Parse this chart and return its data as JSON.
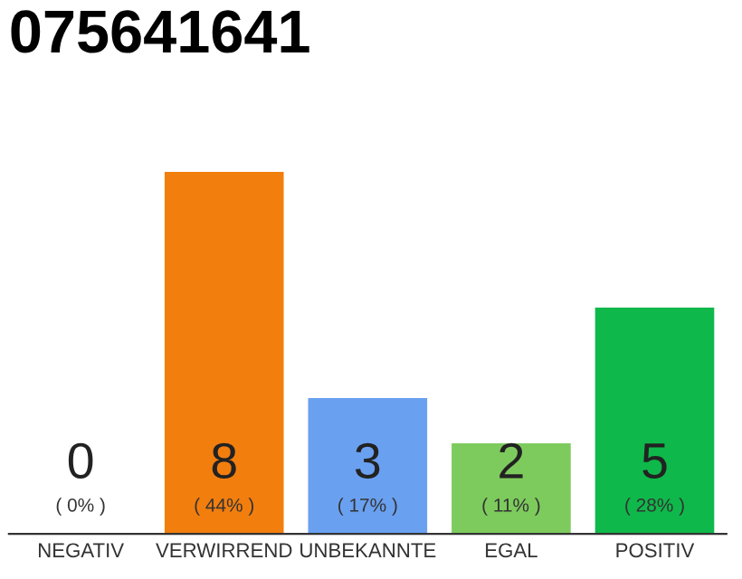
{
  "chart_data": {
    "type": "bar",
    "title": "075641641",
    "categories": [
      "NEGATIV",
      "VERWIRREND",
      "UNBEKANNTE",
      "EGAL",
      "POSITIV"
    ],
    "values": [
      0,
      8,
      3,
      2,
      5
    ],
    "colors": [
      "#999999",
      "#f27e0e",
      "#6aa0f0",
      "#7dcb5d",
      "#0fb84a"
    ],
    "value_labels": [
      "0",
      "8",
      "3",
      "2",
      "5"
    ],
    "annotations": [
      "( 0% )",
      "( 44% )",
      "( 17% )",
      "( 11% )",
      "( 28% )"
    ],
    "tick_labels": "x"
  }
}
